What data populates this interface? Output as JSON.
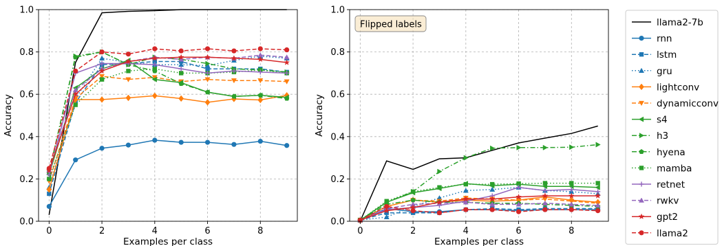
{
  "chart_data": [
    {
      "type": "line",
      "xlabel": "Examples per class",
      "ylabel": "Accuracy",
      "xlim": [
        -0.4,
        9.4
      ],
      "ylim": [
        0,
        1
      ],
      "xticks": [
        "0",
        "2",
        "4",
        "6",
        "8"
      ],
      "yticks": [
        "0.0",
        "0.2",
        "0.4",
        "0.6",
        "0.8",
        "1.0"
      ],
      "grid": true,
      "annotation": "",
      "x": [
        0,
        1,
        2,
        3,
        4,
        5,
        6,
        7,
        8,
        9
      ],
      "series": [
        {
          "name": "llama2-7b",
          "values": [
            0.03,
            0.75,
            0.985,
            0.992,
            0.995,
            1.0,
            1.0,
            1.0,
            1.0,
            1.0
          ]
        },
        {
          "name": "rnn",
          "values": [
            0.07,
            0.29,
            0.345,
            0.36,
            0.383,
            0.373,
            0.373,
            0.363,
            0.378,
            0.358
          ]
        },
        {
          "name": "lstm",
          "values": [
            0.13,
            0.56,
            0.74,
            0.745,
            0.755,
            0.755,
            0.72,
            0.72,
            0.72,
            0.705
          ]
        },
        {
          "name": "gru",
          "values": [
            0.16,
            0.58,
            0.77,
            0.75,
            0.74,
            0.74,
            0.735,
            0.76,
            0.78,
            0.77
          ]
        },
        {
          "name": "lightconv",
          "values": [
            0.15,
            0.575,
            0.575,
            0.583,
            0.593,
            0.58,
            0.562,
            0.578,
            0.573,
            0.595
          ]
        },
        {
          "name": "dynamicconv",
          "values": [
            0.19,
            0.58,
            0.685,
            0.67,
            0.68,
            0.66,
            0.67,
            0.665,
            0.665,
            0.66
          ]
        },
        {
          "name": "s4",
          "values": [
            0.22,
            0.63,
            0.72,
            0.76,
            0.67,
            0.655,
            0.61,
            0.59,
            0.595,
            0.585
          ]
        },
        {
          "name": "h3",
          "values": [
            0.23,
            0.78,
            0.8,
            0.74,
            0.775,
            0.765,
            0.745,
            0.72,
            0.715,
            0.705
          ]
        },
        {
          "name": "hyena",
          "values": [
            0.23,
            0.775,
            0.8,
            0.74,
            0.71,
            0.65,
            0.61,
            0.59,
            0.595,
            0.58
          ]
        },
        {
          "name": "mamba",
          "values": [
            0.2,
            0.55,
            0.67,
            0.71,
            0.72,
            0.7,
            0.7,
            0.705,
            0.715,
            0.7
          ]
        },
        {
          "name": "retnet",
          "values": [
            0.22,
            0.7,
            0.745,
            0.745,
            0.74,
            0.72,
            0.7,
            0.71,
            0.705,
            0.7
          ]
        },
        {
          "name": "rwkv",
          "values": [
            0.24,
            0.62,
            0.72,
            0.755,
            0.775,
            0.765,
            0.775,
            0.77,
            0.785,
            0.775
          ]
        },
        {
          "name": "gpt2",
          "values": [
            0.24,
            0.6,
            0.71,
            0.755,
            0.77,
            0.775,
            0.775,
            0.77,
            0.765,
            0.75
          ]
        },
        {
          "name": "llama2",
          "values": [
            0.25,
            0.71,
            0.8,
            0.79,
            0.815,
            0.805,
            0.815,
            0.805,
            0.815,
            0.81
          ]
        }
      ]
    },
    {
      "type": "line",
      "xlabel": "Examples per class",
      "ylabel": "Accuracy",
      "xlim": [
        -0.4,
        9.4
      ],
      "ylim": [
        0,
        1
      ],
      "xticks": [
        "0",
        "2",
        "4",
        "6",
        "8"
      ],
      "yticks": [
        "0.0",
        "0.2",
        "0.4",
        "0.6",
        "0.8",
        "1.0"
      ],
      "grid": true,
      "annotation": "Flipped labels",
      "x": [
        0,
        1,
        2,
        3,
        4,
        5,
        6,
        7,
        8,
        9
      ],
      "series": [
        {
          "name": "llama2-7b",
          "values": [
            0.0,
            0.285,
            0.245,
            0.295,
            0.3,
            0.335,
            0.37,
            0.393,
            0.415,
            0.45
          ]
        },
        {
          "name": "rnn",
          "values": [
            0.005,
            0.06,
            0.045,
            0.045,
            0.055,
            0.055,
            0.05,
            0.055,
            0.055,
            0.055
          ]
        },
        {
          "name": "lstm",
          "values": [
            0.005,
            0.04,
            0.04,
            0.04,
            0.055,
            0.06,
            0.055,
            0.06,
            0.06,
            0.06
          ]
        },
        {
          "name": "gru",
          "values": [
            0.005,
            0.02,
            0.07,
            0.11,
            0.145,
            0.15,
            0.16,
            0.145,
            0.14,
            0.13
          ]
        },
        {
          "name": "lightconv",
          "values": [
            0.005,
            0.07,
            0.1,
            0.09,
            0.1,
            0.095,
            0.1,
            0.115,
            0.1,
            0.09
          ]
        },
        {
          "name": "dynamicconv",
          "values": [
            0.005,
            0.07,
            0.1,
            0.095,
            0.11,
            0.105,
            0.1,
            0.105,
            0.095,
            0.085
          ]
        },
        {
          "name": "s4",
          "values": [
            0.005,
            0.09,
            0.135,
            0.155,
            0.178,
            0.168,
            0.175,
            0.165,
            0.165,
            0.16
          ]
        },
        {
          "name": "h3",
          "values": [
            0.005,
            0.09,
            0.14,
            0.235,
            0.3,
            0.345,
            0.348,
            0.348,
            0.35,
            0.362
          ]
        },
        {
          "name": "hyena",
          "values": [
            0.005,
            0.08,
            0.1,
            0.09,
            0.09,
            0.085,
            0.085,
            0.08,
            0.075,
            0.07
          ]
        },
        {
          "name": "mamba",
          "values": [
            0.005,
            0.095,
            0.14,
            0.16,
            0.175,
            0.175,
            0.178,
            0.18,
            0.18,
            0.18
          ]
        },
        {
          "name": "retnet",
          "values": [
            0.005,
            0.055,
            0.065,
            0.075,
            0.095,
            0.12,
            0.16,
            0.145,
            0.15,
            0.14
          ]
        },
        {
          "name": "rwkv",
          "values": [
            0.005,
            0.06,
            0.08,
            0.085,
            0.09,
            0.08,
            0.08,
            0.085,
            0.08,
            0.075
          ]
        },
        {
          "name": "gpt2",
          "values": [
            0.005,
            0.05,
            0.065,
            0.09,
            0.105,
            0.105,
            0.115,
            0.12,
            0.12,
            0.12
          ]
        },
        {
          "name": "llama2",
          "values": [
            0.005,
            0.07,
            0.05,
            0.04,
            0.055,
            0.055,
            0.045,
            0.055,
            0.055,
            0.05
          ]
        }
      ]
    }
  ],
  "legend": {
    "placement": "right",
    "entries": [
      {
        "name": "llama2-7b",
        "color": "#000000",
        "dash": "solid",
        "marker": "none"
      },
      {
        "name": "rnn",
        "color": "#1f77b4",
        "dash": "solid",
        "marker": "circle"
      },
      {
        "name": "lstm",
        "color": "#1f77b4",
        "dash": "dashed",
        "marker": "square"
      },
      {
        "name": "gru",
        "color": "#1f77b4",
        "dash": "dotted",
        "marker": "triangle-up"
      },
      {
        "name": "lightconv",
        "color": "#ff7f0e",
        "dash": "solid",
        "marker": "diamond"
      },
      {
        "name": "dynamicconv",
        "color": "#ff7f0e",
        "dash": "dashed",
        "marker": "triangle-down"
      },
      {
        "name": "s4",
        "color": "#2ca02c",
        "dash": "solid",
        "marker": "triangle-left"
      },
      {
        "name": "h3",
        "color": "#2ca02c",
        "dash": "dashdot",
        "marker": "triangle-right"
      },
      {
        "name": "hyena",
        "color": "#2ca02c",
        "dash": "dashdot",
        "marker": "pentagon"
      },
      {
        "name": "mamba",
        "color": "#2ca02c",
        "dash": "dotted",
        "marker": "square"
      },
      {
        "name": "retnet",
        "color": "#9467bd",
        "dash": "solid",
        "marker": "plus"
      },
      {
        "name": "rwkv",
        "color": "#9467bd",
        "dash": "dashed",
        "marker": "triangle-up"
      },
      {
        "name": "gpt2",
        "color": "#d62728",
        "dash": "solid",
        "marker": "star"
      },
      {
        "name": "llama2",
        "color": "#d62728",
        "dash": "dashed",
        "marker": "circle"
      }
    ]
  }
}
